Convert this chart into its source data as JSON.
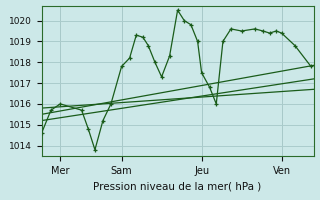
{
  "xlabel": "Pression niveau de la mer( hPa )",
  "background_color": "#cce8e8",
  "grid_color": "#aacccc",
  "line_color": "#1a5c1a",
  "ylim": [
    1013.5,
    1020.7
  ],
  "xlim": [
    0,
    10.2
  ],
  "yticks": [
    1014,
    1015,
    1016,
    1017,
    1018,
    1019,
    1020
  ],
  "xtick_positions": [
    0.7,
    3.0,
    6.0,
    9.0
  ],
  "xtick_labels": [
    "Mer",
    "Sam",
    "Jeu",
    "Ven"
  ],
  "vline_positions": [
    0.7,
    3.0,
    6.0,
    9.0
  ],
  "s1_x": [
    0.0,
    0.35,
    0.7,
    1.5,
    1.75,
    2.0,
    2.3,
    2.6,
    3.0,
    3.3,
    3.55,
    3.8,
    4.0,
    4.25,
    4.5,
    4.8,
    5.1,
    5.35,
    5.6,
    5.85,
    6.0,
    6.3,
    6.55,
    6.8,
    7.1,
    7.5,
    8.0,
    8.3,
    8.55,
    8.8,
    9.0,
    9.5,
    10.1
  ],
  "s1_y": [
    1014.6,
    1015.7,
    1016.0,
    1015.7,
    1014.8,
    1013.8,
    1015.2,
    1016.0,
    1017.8,
    1018.2,
    1019.3,
    1019.2,
    1018.8,
    1018.0,
    1017.3,
    1018.3,
    1020.5,
    1020.0,
    1019.8,
    1019.0,
    1017.5,
    1016.8,
    1016.0,
    1019.0,
    1019.6,
    1019.5,
    1019.6,
    1019.5,
    1019.4,
    1019.5,
    1019.4,
    1018.8,
    1017.8
  ],
  "trend_lines": [
    {
      "x": [
        0.0,
        10.2
      ],
      "y": [
        1015.8,
        1016.7
      ]
    },
    {
      "x": [
        0.0,
        10.2
      ],
      "y": [
        1015.2,
        1017.2
      ]
    },
    {
      "x": [
        0.0,
        10.2
      ],
      "y": [
        1015.5,
        1017.85
      ]
    }
  ],
  "ytick_fontsize": 6.5,
  "xtick_fontsize": 7.0,
  "xlabel_fontsize": 7.5
}
